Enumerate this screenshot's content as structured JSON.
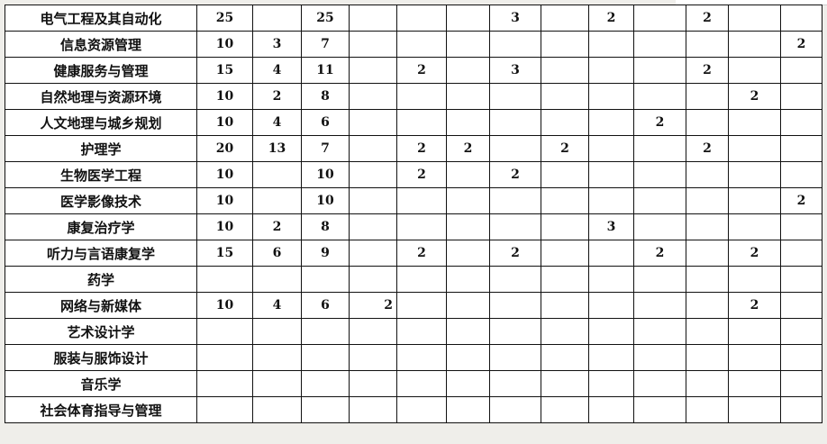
{
  "rows": [
    {
      "name": "电气工程及其自动化",
      "cells": [
        "25",
        "",
        "25",
        "",
        "",
        "",
        "3",
        "",
        "2",
        "",
        "2",
        "",
        ""
      ]
    },
    {
      "name": "信息资源管理",
      "cells": [
        "10",
        "3",
        "7",
        "",
        "",
        "",
        "",
        "",
        "",
        "",
        "",
        "",
        "2"
      ]
    },
    {
      "name": "健康服务与管理",
      "cells": [
        "15",
        "4",
        "11",
        "",
        "2",
        "",
        "3",
        "",
        "",
        "",
        "2",
        "",
        ""
      ]
    },
    {
      "name": "自然地理与资源环境",
      "cells": [
        "10",
        "2",
        "8",
        "",
        "",
        "",
        "",
        "",
        "",
        "",
        "",
        "2",
        ""
      ]
    },
    {
      "name": "人文地理与城乡规划",
      "cells": [
        "10",
        "4",
        "6",
        "",
        "",
        "",
        "",
        "",
        "",
        "2",
        "",
        "",
        ""
      ]
    },
    {
      "name": "护理学",
      "cells": [
        "20",
        "13",
        "7",
        "",
        "2",
        "2",
        "",
        "2",
        "",
        "",
        "2",
        "",
        ""
      ]
    },
    {
      "name": "生物医学工程",
      "cells": [
        "10",
        "",
        "10",
        "",
        "2",
        "",
        "2",
        "",
        "",
        "",
        "",
        "",
        ""
      ]
    },
    {
      "name": "医学影像技术",
      "cells": [
        "10",
        "",
        "10",
        "",
        "",
        "",
        "",
        "",
        "",
        "",
        "",
        "",
        "2"
      ]
    },
    {
      "name": "康复治疗学",
      "cells": [
        "10",
        "2",
        "8",
        "",
        "",
        "",
        "",
        "",
        "3",
        "",
        "",
        "",
        ""
      ]
    },
    {
      "name": "听力与言语康复学",
      "cells": [
        "15",
        "6",
        "9",
        "",
        "2",
        "",
        "2",
        "",
        "",
        "2",
        "",
        "2",
        ""
      ]
    },
    {
      "name": "药学",
      "cells": [
        "",
        "",
        "",
        "",
        "",
        "",
        "",
        "",
        "",
        "",
        "",
        "",
        ""
      ]
    },
    {
      "name": "网络与新媒体",
      "cells": [
        "10",
        "4",
        "6",
        "2",
        "",
        "",
        "",
        "",
        "",
        "",
        "",
        "2",
        ""
      ]
    },
    {
      "name": "艺术设计学",
      "cells": [
        "",
        "",
        "",
        "",
        "",
        "",
        "",
        "",
        "",
        "",
        "",
        "",
        ""
      ]
    },
    {
      "name": "服装与服饰设计",
      "cells": [
        "",
        "",
        "",
        "",
        "",
        "",
        "",
        "",
        "",
        "",
        "",
        "",
        ""
      ]
    },
    {
      "name": "音乐学",
      "cells": [
        "",
        "",
        "",
        "",
        "",
        "",
        "",
        "",
        "",
        "",
        "",
        "",
        ""
      ]
    },
    {
      "name": "社会体育指导与管理",
      "cells": [
        "",
        "",
        "",
        "",
        "",
        "",
        "",
        "",
        "",
        "",
        "",
        "",
        ""
      ]
    }
  ]
}
